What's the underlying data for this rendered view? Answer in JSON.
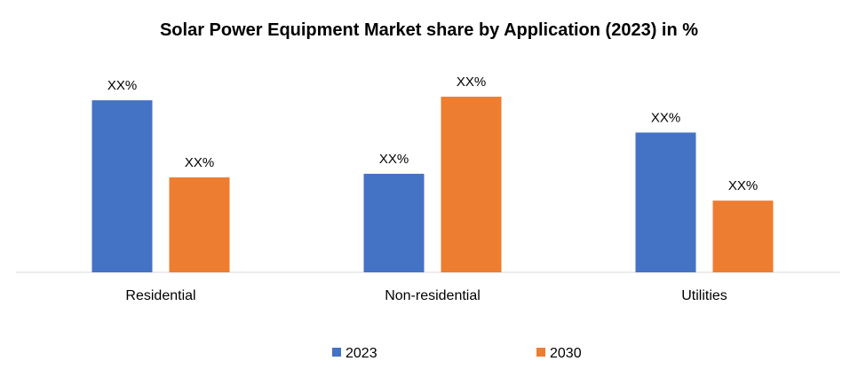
{
  "chart_data": {
    "type": "bar",
    "title": "Solar Power Equipment Market share by Application (2023) in %",
    "xlabel": "",
    "ylabel": "",
    "categories": [
      "Residential",
      "Non-residential",
      "Utilities"
    ],
    "series": [
      {
        "name": "2023",
        "color": "#4472C4",
        "values": [
          96,
          55,
          78
        ],
        "labels": [
          "XX%",
          "XX%",
          "XX%"
        ]
      },
      {
        "name": "2030",
        "color": "#ED7D31",
        "values": [
          53,
          98,
          40
        ],
        "labels": [
          "XX%",
          "XX%",
          "XX%"
        ]
      }
    ],
    "ylim": [
      0,
      100
    ],
    "grid": false,
    "legend": "bottom-center"
  }
}
